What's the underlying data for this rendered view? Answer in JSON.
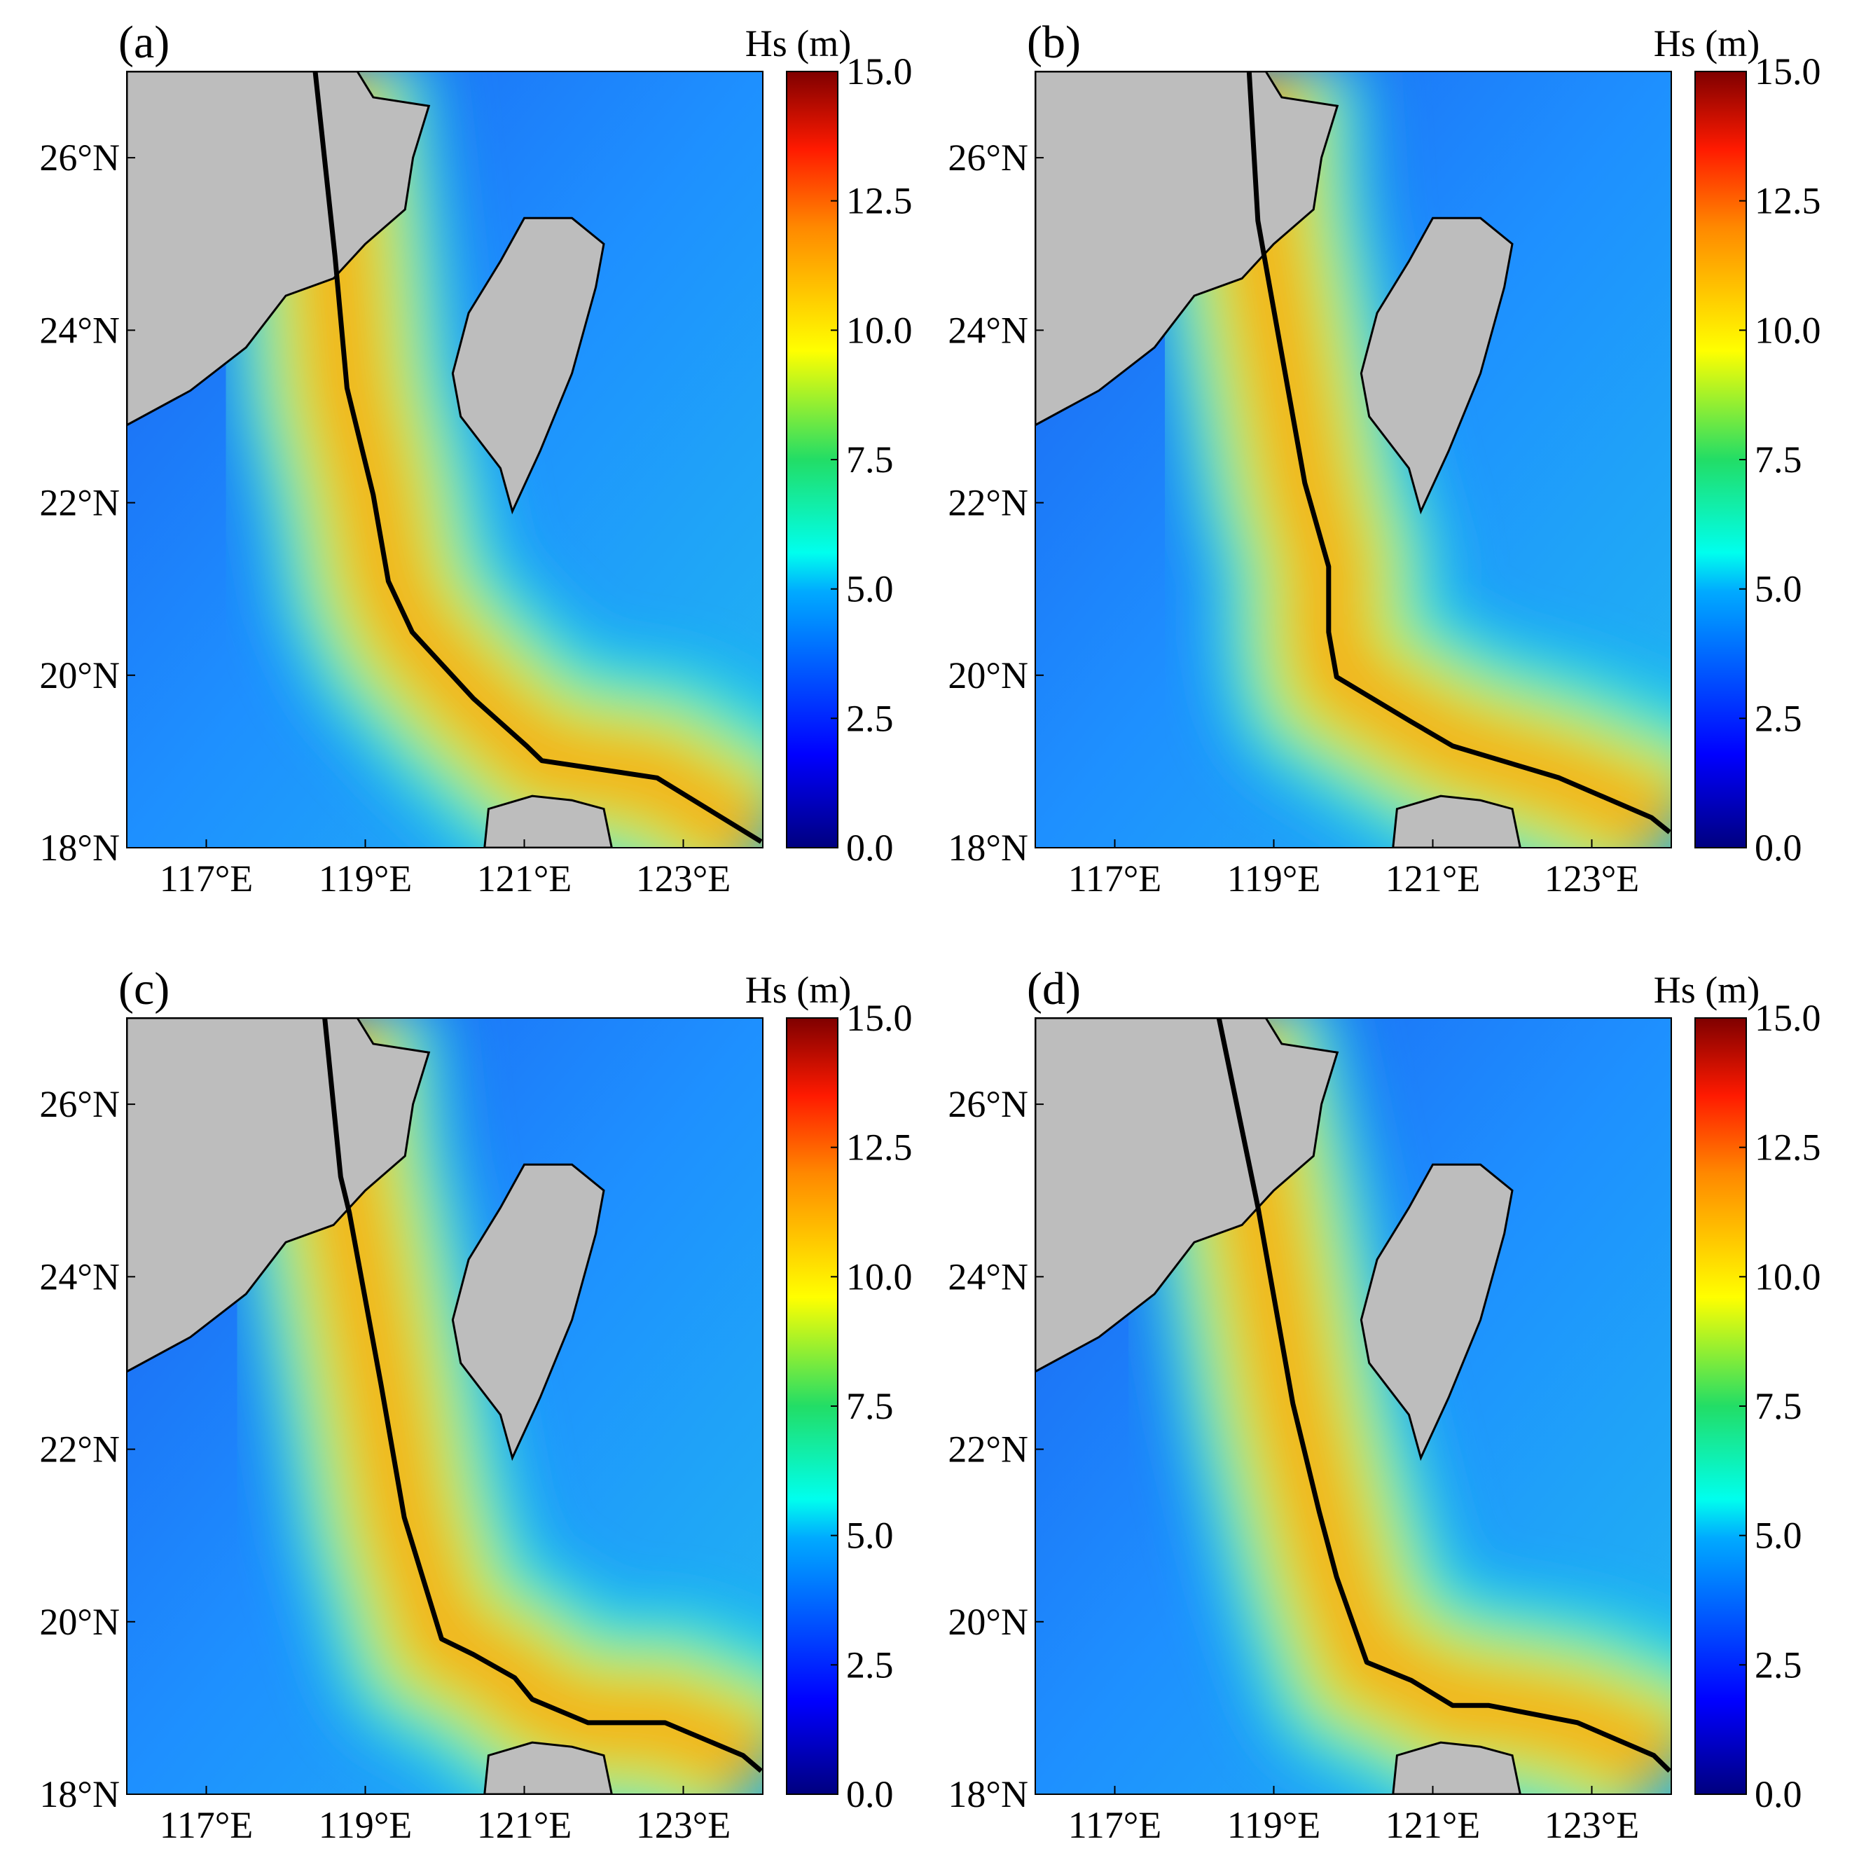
{
  "xlim": [
    116,
    124
  ],
  "ylim": [
    18,
    27
  ],
  "xticks": [
    {
      "value": 117,
      "label": "117°E"
    },
    {
      "value": 119,
      "label": "119°E"
    },
    {
      "value": 121,
      "label": "121°E"
    },
    {
      "value": 123,
      "label": "123°E"
    }
  ],
  "yticks": [
    {
      "value": 18,
      "label": "18°N"
    },
    {
      "value": 20,
      "label": "20°N"
    },
    {
      "value": 22,
      "label": "22°N"
    },
    {
      "value": 24,
      "label": "24°N"
    },
    {
      "value": 26,
      "label": "26°N"
    }
  ],
  "colorbar": {
    "title": "Hs (m)",
    "lim": [
      0,
      15
    ],
    "ticks": [
      {
        "value": 0,
        "label": "0.0"
      },
      2.5,
      {
        "value": 5,
        "label": "5.0"
      },
      7.5,
      {
        "value": 10,
        "label": "10.0"
      },
      12.5,
      {
        "value": 15,
        "label": "15.0"
      }
    ]
  },
  "panels": [
    {
      "label": "(a)",
      "track": {
        "lon": [
          118.37,
          118.62,
          118.77,
          119.1,
          119.29,
          119.59,
          120.36,
          121.03,
          121.22,
          122.67,
          123.98
        ],
        "lat": [
          27.0,
          24.85,
          23.33,
          22.09,
          21.09,
          20.5,
          19.73,
          19.18,
          19.01,
          18.81,
          18.07
        ]
      }
    },
    {
      "label": "(b)",
      "track": {
        "lon": [
          118.69,
          118.8,
          118.92,
          119.39,
          119.69,
          119.69,
          119.79,
          120.73,
          121.25,
          122.59,
          123.75,
          123.98
        ],
        "lat": [
          27.0,
          25.27,
          24.65,
          22.23,
          21.26,
          20.5,
          19.98,
          19.46,
          19.18,
          18.81,
          18.35,
          18.18
        ]
      }
    },
    {
      "label": "(c)",
      "track": {
        "lon": [
          118.49,
          118.69,
          118.8,
          119.2,
          119.49,
          119.96,
          120.36,
          120.88,
          121.1,
          121.8,
          122.77,
          123.75,
          123.98
        ],
        "lat": [
          27.0,
          25.16,
          24.74,
          22.74,
          21.21,
          19.8,
          19.62,
          19.35,
          19.1,
          18.83,
          18.83,
          18.45,
          18.27
        ]
      }
    },
    {
      "label": "(d)",
      "track": {
        "lon": [
          118.31,
          118.8,
          119.24,
          119.57,
          119.79,
          120.17,
          120.73,
          121.25,
          121.7,
          122.82,
          123.78,
          123.98
        ],
        "lat": [
          27.0,
          24.81,
          22.53,
          21.28,
          20.52,
          19.53,
          19.32,
          19.03,
          19.03,
          18.83,
          18.45,
          18.27
        ]
      }
    }
  ]
}
